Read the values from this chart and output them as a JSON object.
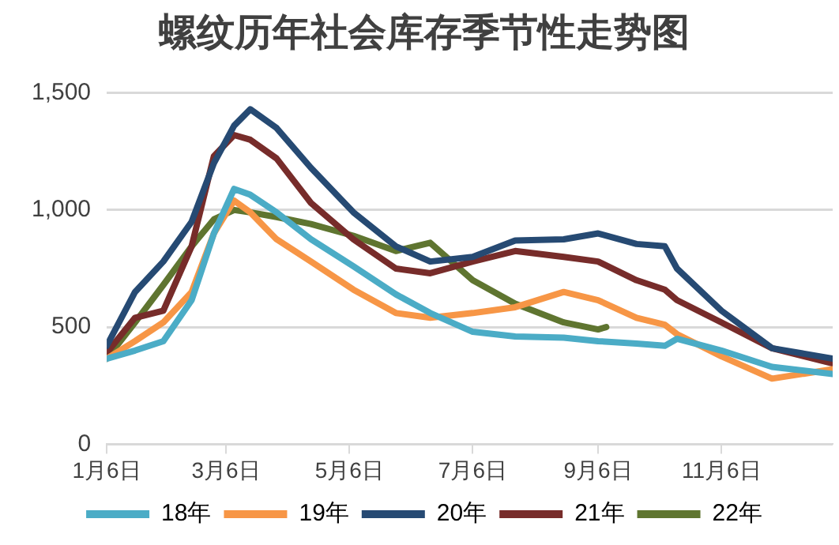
{
  "chart_data": {
    "type": "line",
    "title": "螺纹历年社会库存季节性走势图",
    "x": [
      "--01-06",
      "--01-20",
      "--02-03",
      "--02-17",
      "--02-28",
      "--03-10",
      "--03-18",
      "--03-31",
      "--04-17",
      "--05-08",
      "--05-29",
      "--06-15",
      "--07-06",
      "--07-27",
      "--08-20",
      "--09-06",
      "--09-25",
      "--10-09",
      "--10-15",
      "--11-06",
      "--12-01",
      "--12-31"
    ],
    "series": [
      {
        "name": "18年",
        "color": "#4bacc6",
        "values": [
          365,
          400,
          440,
          615,
          900,
          1090,
          1065,
          990,
          875,
          760,
          640,
          560,
          480,
          460,
          455,
          440,
          430,
          420,
          450,
          400,
          330,
          300
        ]
      },
      {
        "name": "19年",
        "color": "#f79646",
        "values": [
          365,
          440,
          520,
          650,
          900,
          1040,
          990,
          875,
          780,
          660,
          560,
          540,
          560,
          585,
          650,
          615,
          540,
          510,
          470,
          375,
          280,
          320
        ]
      },
      {
        "name": "20年",
        "color": "#264a73",
        "values": [
          420,
          650,
          780,
          950,
          1200,
          1360,
          1430,
          1350,
          1180,
          990,
          845,
          780,
          800,
          870,
          875,
          900,
          855,
          845,
          750,
          570,
          410,
          365
        ]
      },
      {
        "name": "21年",
        "color": "#772c2a",
        "values": [
          390,
          540,
          570,
          845,
          1230,
          1320,
          1300,
          1220,
          1030,
          875,
          750,
          730,
          780,
          825,
          800,
          780,
          700,
          660,
          615,
          520,
          410,
          345
        ]
      },
      {
        "name": "22年",
        "color": "#5f7530",
        "x": [
          "--01-06",
          "--01-20",
          "--02-03",
          "--02-17",
          "--02-28",
          "--03-10",
          "--03-18",
          "--03-31",
          "--04-17",
          "--05-08",
          "--05-29",
          "--06-15",
          "--07-06",
          "--07-27",
          "--08-20",
          "--09-06",
          "--09-10"
        ],
        "values": [
          365,
          520,
          680,
          845,
          960,
          1000,
          990,
          970,
          940,
          890,
          825,
          860,
          700,
          600,
          520,
          490,
          500
        ]
      }
    ],
    "xlim": [
      "--01-06",
      "--12-31"
    ],
    "xticks": [
      {
        "value": "--01-06",
        "label": "1月6日"
      },
      {
        "value": "--03-06",
        "label": "3月6日"
      },
      {
        "value": "--05-06",
        "label": "5月6日"
      },
      {
        "value": "--07-06",
        "label": "7月6日"
      },
      {
        "value": "--09-06",
        "label": "9月6日"
      },
      {
        "value": "--11-06",
        "label": "11月6日"
      }
    ],
    "ylim": [
      0,
      1500
    ],
    "yticks": [
      0,
      500,
      "1,000",
      "1,500"
    ],
    "grid": "y",
    "legend": "bottom",
    "marker": "none",
    "line_style": "solid"
  }
}
